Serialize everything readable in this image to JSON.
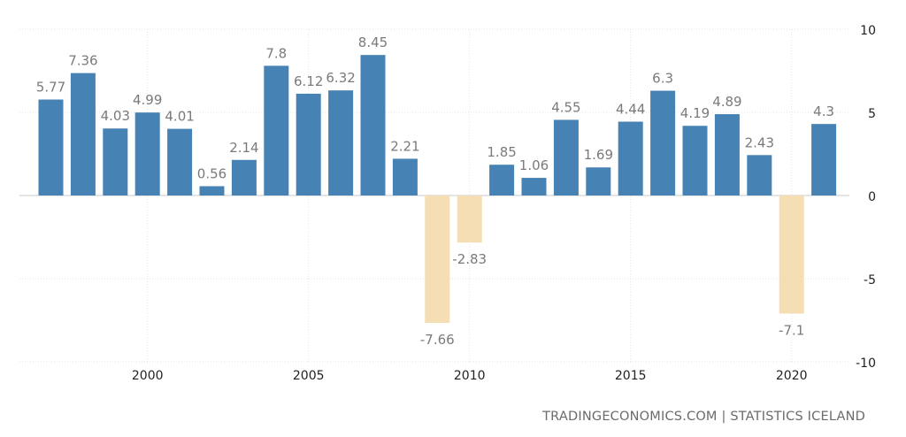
{
  "colors": {
    "positive": "#4682b4",
    "negative": "#f5deb3",
    "grid": "#e3e3e3",
    "zero_line": "#c8c8c8",
    "value_label": "#7a7a7a",
    "tick_label": "#222222"
  },
  "source": "TRADINGECONOMICS.COM | STATISTICS ICELAND",
  "chart_data": {
    "type": "bar",
    "title": "",
    "xlabel": "",
    "ylabel": "",
    "ylim": [
      -10,
      10
    ],
    "grid": true,
    "y_axis_side": "right",
    "x": [
      1997,
      1998,
      1999,
      2000,
      2001,
      2002,
      2003,
      2004,
      2005,
      2006,
      2007,
      2008,
      2009,
      2010,
      2011,
      2012,
      2013,
      2014,
      2015,
      2016,
      2017,
      2018,
      2019,
      2020,
      2021
    ],
    "values": [
      5.77,
      7.36,
      4.03,
      4.99,
      4.01,
      0.56,
      2.14,
      7.8,
      6.12,
      6.32,
      8.45,
      2.21,
      -7.66,
      -2.83,
      1.85,
      1.06,
      4.55,
      1.69,
      4.44,
      6.3,
      4.19,
      4.89,
      2.43,
      -7.1,
      4.3
    ],
    "labels": [
      "5.77",
      "7.36",
      "4.03",
      "4.99",
      "4.01",
      "0.56",
      "2.14",
      "7.8",
      "6.12",
      "6.32",
      "8.45",
      "2.21",
      "-7.66",
      "-2.83",
      "1.85",
      "1.06",
      "4.55",
      "1.69",
      "4.44",
      "6.3",
      "4.19",
      "4.89",
      "2.43",
      "-7.1",
      "4.3"
    ],
    "x_ticks": [
      2000,
      2005,
      2010,
      2015,
      2020
    ],
    "x_tick_labels": [
      "2000",
      "2005",
      "2010",
      "2015",
      "2020"
    ],
    "y_ticks": [
      10,
      5,
      0,
      -5,
      -10
    ],
    "y_tick_labels": [
      "10",
      "5",
      "0",
      "-5",
      "-10"
    ]
  }
}
